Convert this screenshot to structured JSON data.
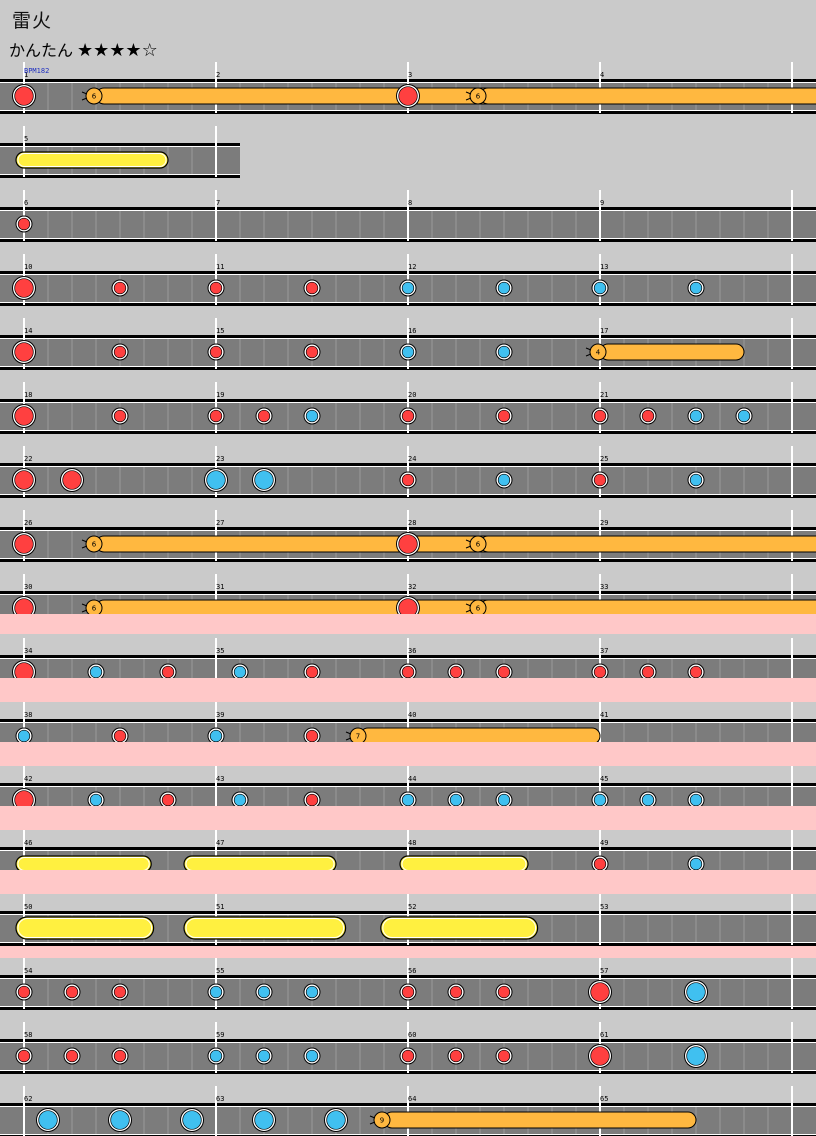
{
  "song": {
    "title": "雷火",
    "difficulty": "かんたん",
    "stars": "★★★★☆"
  },
  "bpm_label": "BPM182",
  "colors": {
    "background": "#cacaca",
    "track": "#7c7c7c",
    "gogo_band": "#ffc8c8",
    "don": "#ff4040",
    "ka": "#40c0f0",
    "drumroll": "#ffb840",
    "roll_yellow": "#fff040",
    "rail": "#000000"
  },
  "rows": [
    {
      "measures": [
        1,
        2,
        3,
        4
      ],
      "gogo": false,
      "notes": [
        {
          "m": 1,
          "b": 0,
          "t": "DON"
        },
        {
          "m": 3,
          "b": 0,
          "t": "DON"
        }
      ],
      "rolls": [
        {
          "sm": 1,
          "sb": 3,
          "em": 2,
          "eb": 12,
          "t": "balloon",
          "count": "6"
        },
        {
          "sm": 3,
          "sb": 3,
          "em": 4,
          "eb": 12,
          "t": "balloon",
          "count": "6"
        }
      ]
    },
    {
      "measures": [
        5
      ],
      "gogo": false,
      "notes": [],
      "rolls": [
        {
          "sm": 5,
          "sb": 0,
          "em": 5,
          "eb": 6,
          "t": "roll",
          "big": false
        }
      ]
    },
    {
      "measures": [
        6,
        7,
        8,
        9
      ],
      "gogo": false,
      "notes": [
        {
          "m": 6,
          "b": 0,
          "t": "don"
        }
      ],
      "rolls": []
    },
    {
      "measures": [
        10,
        11,
        12,
        13
      ],
      "gogo": false,
      "notes": [
        {
          "m": 10,
          "b": 0,
          "t": "DON"
        },
        {
          "m": 10,
          "b": 4,
          "t": "don"
        },
        {
          "m": 11,
          "b": 0,
          "t": "don"
        },
        {
          "m": 11,
          "b": 4,
          "t": "don"
        },
        {
          "m": 12,
          "b": 0,
          "t": "ka"
        },
        {
          "m": 12,
          "b": 4,
          "t": "ka"
        },
        {
          "m": 13,
          "b": 0,
          "t": "ka"
        },
        {
          "m": 13,
          "b": 4,
          "t": "ka"
        }
      ],
      "rolls": []
    },
    {
      "measures": [
        14,
        15,
        16,
        17
      ],
      "gogo": false,
      "notes": [
        {
          "m": 14,
          "b": 0,
          "t": "DON"
        },
        {
          "m": 14,
          "b": 4,
          "t": "don"
        },
        {
          "m": 15,
          "b": 0,
          "t": "don"
        },
        {
          "m": 15,
          "b": 4,
          "t": "don"
        },
        {
          "m": 16,
          "b": 0,
          "t": "ka"
        },
        {
          "m": 16,
          "b": 4,
          "t": "ka"
        }
      ],
      "rolls": [
        {
          "sm": 17,
          "sb": 0,
          "em": 17,
          "eb": 6,
          "t": "balloon",
          "count": "4"
        }
      ]
    },
    {
      "measures": [
        18,
        19,
        20,
        21
      ],
      "gogo": false,
      "notes": [
        {
          "m": 18,
          "b": 0,
          "t": "DON"
        },
        {
          "m": 18,
          "b": 4,
          "t": "don"
        },
        {
          "m": 19,
          "b": 0,
          "t": "don"
        },
        {
          "m": 19,
          "b": 2,
          "t": "don"
        },
        {
          "m": 19,
          "b": 4,
          "t": "ka"
        },
        {
          "m": 20,
          "b": 0,
          "t": "don"
        },
        {
          "m": 20,
          "b": 4,
          "t": "don"
        },
        {
          "m": 21,
          "b": 0,
          "t": "don"
        },
        {
          "m": 21,
          "b": 2,
          "t": "don"
        },
        {
          "m": 21,
          "b": 4,
          "t": "ka"
        },
        {
          "m": 21,
          "b": 6,
          "t": "ka"
        }
      ],
      "rolls": []
    },
    {
      "measures": [
        22,
        23,
        24,
        25
      ],
      "gogo": false,
      "notes": [
        {
          "m": 22,
          "b": 0,
          "t": "DON"
        },
        {
          "m": 22,
          "b": 2,
          "t": "DON"
        },
        {
          "m": 22,
          "b": 8,
          "t": "KA"
        },
        {
          "m": 23,
          "b": 2,
          "t": "KA"
        },
        {
          "m": 24,
          "b": 0,
          "t": "don"
        },
        {
          "m": 24,
          "b": 4,
          "t": "ka"
        },
        {
          "m": 25,
          "b": 0,
          "t": "don"
        },
        {
          "m": 25,
          "b": 4,
          "t": "ka"
        }
      ],
      "rolls": []
    },
    {
      "measures": [
        26,
        27,
        28,
        29
      ],
      "gogo": false,
      "notes": [
        {
          "m": 26,
          "b": 0,
          "t": "DON"
        },
        {
          "m": 28,
          "b": 0,
          "t": "DON"
        }
      ],
      "rolls": [
        {
          "sm": 26,
          "sb": 3,
          "em": 27,
          "eb": 12,
          "t": "balloon",
          "count": "6"
        },
        {
          "sm": 28,
          "sb": 3,
          "em": 29,
          "eb": 12,
          "t": "balloon",
          "count": "6"
        }
      ]
    },
    {
      "measures": [
        30,
        31,
        32,
        33
      ],
      "gogo": false,
      "notes": [
        {
          "m": 30,
          "b": 0,
          "t": "DON"
        },
        {
          "m": 32,
          "b": 0,
          "t": "DON"
        }
      ],
      "rolls": [
        {
          "sm": 30,
          "sb": 3,
          "em": 31,
          "eb": 12,
          "t": "balloon",
          "count": "6"
        },
        {
          "sm": 32,
          "sb": 3,
          "em": 33,
          "eb": 12,
          "t": "balloon",
          "count": "6"
        }
      ]
    },
    {
      "measures": [
        34,
        35,
        36,
        37
      ],
      "gogo": true,
      "notes": [
        {
          "m": 34,
          "b": 0,
          "t": "DON"
        },
        {
          "m": 34,
          "b": 3,
          "t": "ka"
        },
        {
          "m": 34,
          "b": 6,
          "t": "don"
        },
        {
          "m": 35,
          "b": 1,
          "t": "ka"
        },
        {
          "m": 35,
          "b": 4,
          "t": "don"
        },
        {
          "m": 36,
          "b": 0,
          "t": "don"
        },
        {
          "m": 36,
          "b": 2,
          "t": "don"
        },
        {
          "m": 36,
          "b": 4,
          "t": "don"
        },
        {
          "m": 37,
          "b": 0,
          "t": "don"
        },
        {
          "m": 37,
          "b": 2,
          "t": "don"
        },
        {
          "m": 37,
          "b": 4,
          "t": "don"
        }
      ],
      "rolls": []
    },
    {
      "measures": [
        38,
        39,
        40,
        41
      ],
      "gogo": true,
      "notes": [
        {
          "m": 38,
          "b": 0,
          "t": "ka"
        },
        {
          "m": 38,
          "b": 4,
          "t": "don"
        },
        {
          "m": 39,
          "b": 0,
          "t": "ka"
        },
        {
          "m": 39,
          "b": 4,
          "t": "don"
        }
      ],
      "rolls": [
        {
          "sm": 39,
          "sb": 6,
          "em": 41,
          "eb": 0,
          "t": "balloon",
          "count": "7"
        }
      ]
    },
    {
      "measures": [
        42,
        43,
        44,
        45
      ],
      "gogo": true,
      "notes": [
        {
          "m": 42,
          "b": 0,
          "t": "DON"
        },
        {
          "m": 42,
          "b": 3,
          "t": "ka"
        },
        {
          "m": 42,
          "b": 6,
          "t": "don"
        },
        {
          "m": 43,
          "b": 1,
          "t": "ka"
        },
        {
          "m": 43,
          "b": 4,
          "t": "don"
        },
        {
          "m": 44,
          "b": 0,
          "t": "ka"
        },
        {
          "m": 44,
          "b": 2,
          "t": "ka"
        },
        {
          "m": 44,
          "b": 4,
          "t": "ka"
        },
        {
          "m": 45,
          "b": 0,
          "t": "ka"
        },
        {
          "m": 45,
          "b": 2,
          "t": "ka"
        },
        {
          "m": 45,
          "b": 4,
          "t": "ka"
        }
      ],
      "rolls": []
    },
    {
      "measures": [
        46,
        47,
        48,
        49
      ],
      "gogo": true,
      "notes": [
        {
          "m": 49,
          "b": 0,
          "t": "don"
        },
        {
          "m": 49,
          "b": 4,
          "t": "ka"
        }
      ],
      "rolls": [
        {
          "sm": 46,
          "sb": 0,
          "em": 46,
          "eb": 5.3,
          "t": "roll",
          "big": false
        },
        {
          "sm": 46,
          "sb": 7,
          "em": 47,
          "eb": 5,
          "t": "roll",
          "big": false
        },
        {
          "sm": 48,
          "sb": 0,
          "em": 48,
          "eb": 5,
          "t": "roll",
          "big": false
        }
      ]
    },
    {
      "measures": [
        50,
        51,
        52,
        53
      ],
      "gogo": true,
      "notes": [],
      "rolls": [
        {
          "sm": 50,
          "sb": 0,
          "em": 50,
          "eb": 5.4,
          "t": "roll",
          "big": true
        },
        {
          "sm": 50,
          "sb": 7,
          "em": 51,
          "eb": 5.4,
          "t": "roll",
          "big": true
        },
        {
          "sm": 51,
          "sb": 7.2,
          "em": 52,
          "eb": 5.4,
          "t": "roll",
          "big": true
        }
      ]
    },
    {
      "measures": [
        54,
        55,
        56,
        57
      ],
      "gogo": false,
      "notes": [
        {
          "m": 54,
          "b": 0,
          "t": "don"
        },
        {
          "m": 54,
          "b": 2,
          "t": "don"
        },
        {
          "m": 54,
          "b": 4,
          "t": "don"
        },
        {
          "m": 55,
          "b": 0,
          "t": "ka"
        },
        {
          "m": 55,
          "b": 2,
          "t": "ka"
        },
        {
          "m": 55,
          "b": 4,
          "t": "ka"
        },
        {
          "m": 56,
          "b": 0,
          "t": "don"
        },
        {
          "m": 56,
          "b": 2,
          "t": "don"
        },
        {
          "m": 56,
          "b": 4,
          "t": "don"
        },
        {
          "m": 57,
          "b": 0,
          "t": "DON"
        },
        {
          "m": 57,
          "b": 4,
          "t": "KA"
        }
      ],
      "rolls": []
    },
    {
      "measures": [
        58,
        59,
        60,
        61
      ],
      "gogo": false,
      "notes": [
        {
          "m": 58,
          "b": 0,
          "t": "don"
        },
        {
          "m": 58,
          "b": 2,
          "t": "don"
        },
        {
          "m": 58,
          "b": 4,
          "t": "don"
        },
        {
          "m": 59,
          "b": 0,
          "t": "ka"
        },
        {
          "m": 59,
          "b": 2,
          "t": "ka"
        },
        {
          "m": 59,
          "b": 4,
          "t": "ka"
        },
        {
          "m": 60,
          "b": 0,
          "t": "don"
        },
        {
          "m": 60,
          "b": 2,
          "t": "don"
        },
        {
          "m": 60,
          "b": 4,
          "t": "don"
        },
        {
          "m": 61,
          "b": 0,
          "t": "DON"
        },
        {
          "m": 61,
          "b": 4,
          "t": "KA"
        }
      ],
      "rolls": []
    },
    {
      "measures": [
        62,
        63,
        64,
        65
      ],
      "gogo": false,
      "notes": [
        {
          "m": 62,
          "b": 1,
          "t": "KA"
        },
        {
          "m": 62,
          "b": 4,
          "t": "KA"
        },
        {
          "m": 62,
          "b": 7,
          "t": "KA"
        },
        {
          "m": 63,
          "b": 2,
          "t": "KA"
        },
        {
          "m": 63,
          "b": 5,
          "t": "KA"
        }
      ],
      "rolls": [
        {
          "sm": 63,
          "sb": 7,
          "em": 65,
          "eb": 4,
          "t": "balloon",
          "count": "9"
        }
      ]
    }
  ]
}
